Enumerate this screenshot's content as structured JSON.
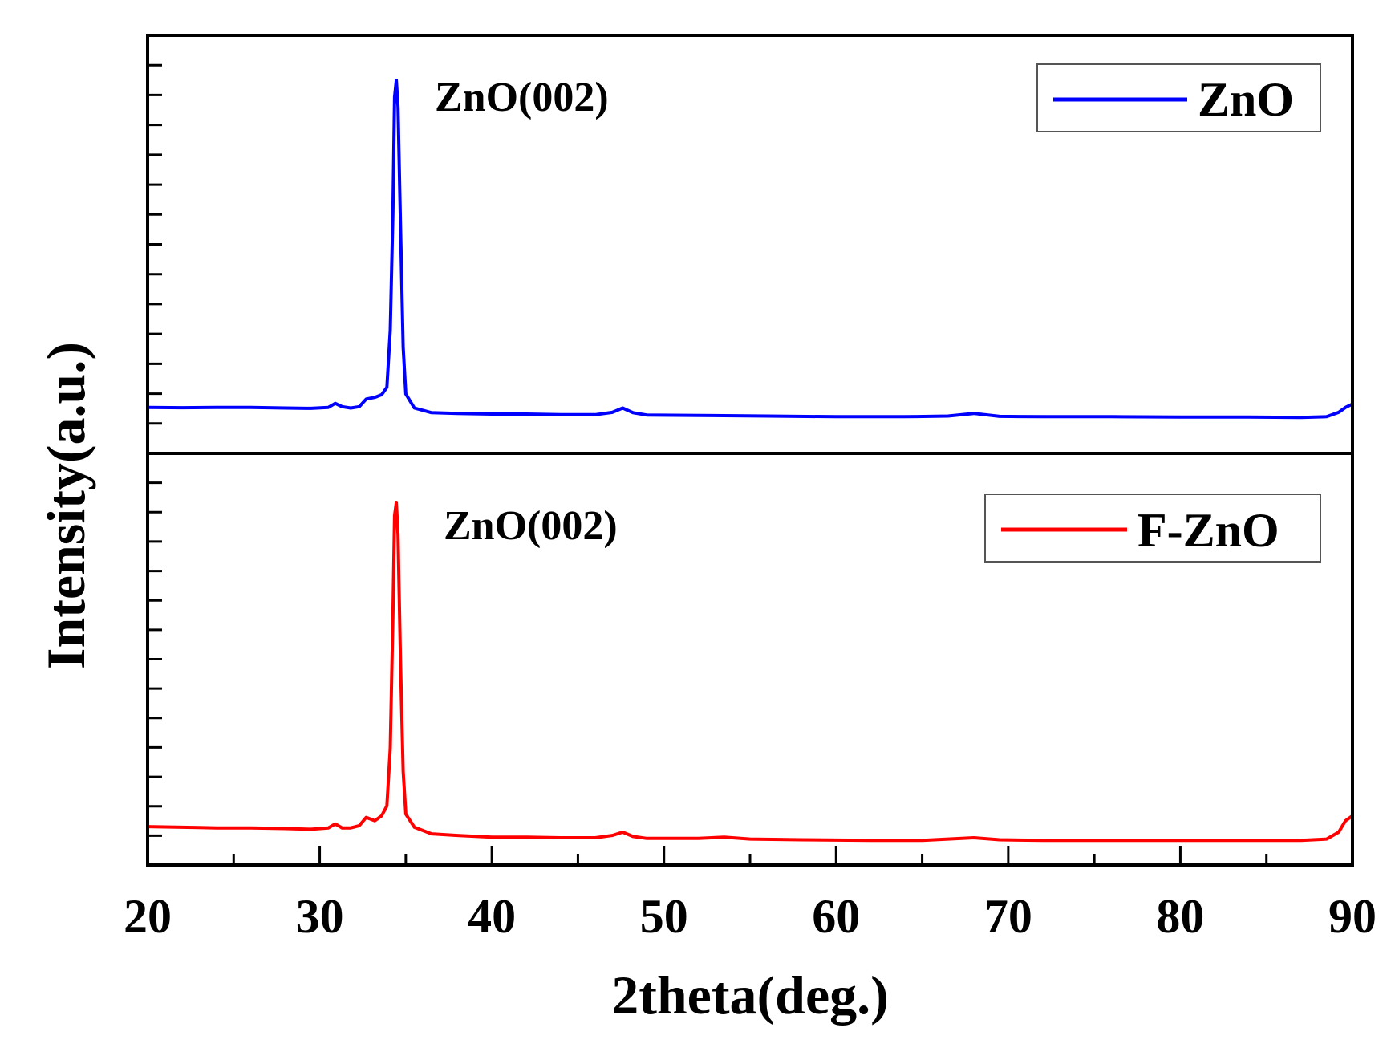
{
  "chart_data": {
    "type": "line",
    "xlabel": "2theta(deg.)",
    "ylabel": "Intensity(a.u.)",
    "xlim": [
      20,
      90
    ],
    "xticks": [
      "20",
      "30",
      "40",
      "50",
      "60",
      "70",
      "80",
      "90"
    ],
    "panels": [
      {
        "series": [
          {
            "name": "ZnO",
            "color": "#0000ff",
            "points": [
              [
                20,
                0.02
              ],
              [
                22,
                0.019
              ],
              [
                24,
                0.02
              ],
              [
                26,
                0.02
              ],
              [
                28,
                0.018
              ],
              [
                29.5,
                0.017
              ],
              [
                30.5,
                0.02
              ],
              [
                30.9,
                0.032
              ],
              [
                31.3,
                0.022
              ],
              [
                31.8,
                0.018
              ],
              [
                32.3,
                0.022
              ],
              [
                32.7,
                0.045
              ],
              [
                33.2,
                0.05
              ],
              [
                33.6,
                0.058
              ],
              [
                33.9,
                0.08
              ],
              [
                34.1,
                0.25
              ],
              [
                34.25,
                0.6
              ],
              [
                34.35,
                0.95
              ],
              [
                34.45,
                1.0
              ],
              [
                34.55,
                0.92
              ],
              [
                34.7,
                0.55
              ],
              [
                34.85,
                0.2
              ],
              [
                35.0,
                0.06
              ],
              [
                35.5,
                0.018
              ],
              [
                36.5,
                0.004
              ],
              [
                38,
                0.002
              ],
              [
                40,
                0.0
              ],
              [
                42,
                0.0
              ],
              [
                44,
                -0.002
              ],
              [
                46,
                -0.002
              ],
              [
                47.0,
                0.005
              ],
              [
                47.6,
                0.018
              ],
              [
                48.2,
                0.004
              ],
              [
                49,
                -0.003
              ],
              [
                52,
                -0.004
              ],
              [
                56,
                -0.006
              ],
              [
                60,
                -0.008
              ],
              [
                64,
                -0.008
              ],
              [
                66.5,
                -0.006
              ],
              [
                68.0,
                0.002
              ],
              [
                69.5,
                -0.007
              ],
              [
                72,
                -0.008
              ],
              [
                76,
                -0.008
              ],
              [
                80,
                -0.009
              ],
              [
                84,
                -0.009
              ],
              [
                87,
                -0.01
              ],
              [
                88.5,
                -0.008
              ],
              [
                89.2,
                0.005
              ],
              [
                89.6,
                0.02
              ],
              [
                90,
                0.03
              ]
            ]
          }
        ],
        "annotation": "ZnO(002)"
      },
      {
        "series": [
          {
            "name": "F-ZnO",
            "color": "#ff0000",
            "points": [
              [
                20,
                0.012
              ],
              [
                22,
                0.01
              ],
              [
                24,
                0.008
              ],
              [
                26,
                0.008
              ],
              [
                28,
                0.006
              ],
              [
                29.5,
                0.004
              ],
              [
                30.5,
                0.008
              ],
              [
                30.9,
                0.02
              ],
              [
                31.3,
                0.008
              ],
              [
                31.8,
                0.008
              ],
              [
                32.3,
                0.015
              ],
              [
                32.7,
                0.04
              ],
              [
                33.2,
                0.03
              ],
              [
                33.6,
                0.045
              ],
              [
                33.9,
                0.075
              ],
              [
                34.1,
                0.25
              ],
              [
                34.25,
                0.65
              ],
              [
                34.35,
                0.96
              ],
              [
                34.45,
                1.0
              ],
              [
                34.55,
                0.9
              ],
              [
                34.7,
                0.5
              ],
              [
                34.85,
                0.18
              ],
              [
                35.0,
                0.05
              ],
              [
                35.5,
                0.01
              ],
              [
                36.5,
                -0.01
              ],
              [
                38,
                -0.015
              ],
              [
                40,
                -0.02
              ],
              [
                42,
                -0.02
              ],
              [
                44,
                -0.022
              ],
              [
                46,
                -0.022
              ],
              [
                47.0,
                -0.015
              ],
              [
                47.6,
                -0.005
              ],
              [
                48.2,
                -0.018
              ],
              [
                49,
                -0.024
              ],
              [
                52,
                -0.024
              ],
              [
                53.5,
                -0.02
              ],
              [
                55,
                -0.026
              ],
              [
                58,
                -0.028
              ],
              [
                62,
                -0.03
              ],
              [
                65,
                -0.03
              ],
              [
                66.5,
                -0.026
              ],
              [
                68.0,
                -0.022
              ],
              [
                69.5,
                -0.028
              ],
              [
                72,
                -0.03
              ],
              [
                76,
                -0.03
              ],
              [
                80,
                -0.03
              ],
              [
                84,
                -0.03
              ],
              [
                87,
                -0.03
              ],
              [
                88.5,
                -0.026
              ],
              [
                89.2,
                -0.005
              ],
              [
                89.6,
                0.03
              ],
              [
                90,
                0.045
              ]
            ]
          }
        ],
        "annotation": "ZnO(002)"
      }
    ]
  }
}
